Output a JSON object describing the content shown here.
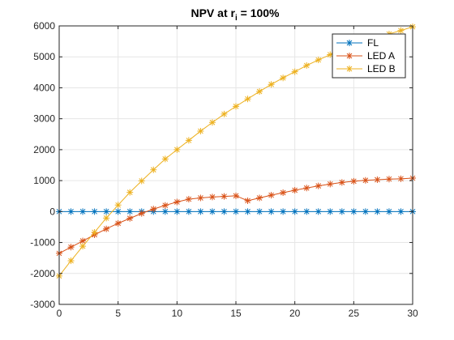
{
  "chart_data": {
    "type": "line",
    "title": "NPV at r",
    "title_sub": "i",
    "title_tail": " = 100%",
    "xlabel": "",
    "ylabel": "",
    "xlim": [
      0,
      30
    ],
    "ylim": [
      -3000,
      6000
    ],
    "xticks": [
      0,
      5,
      10,
      15,
      20,
      25,
      30
    ],
    "yticks": [
      -3000,
      -2000,
      -1000,
      0,
      1000,
      2000,
      3000,
      4000,
      5000,
      6000
    ],
    "grid": true,
    "legend_position": "top-right",
    "marker": "asterisk",
    "x": [
      0,
      1,
      2,
      3,
      4,
      5,
      6,
      7,
      8,
      9,
      10,
      11,
      12,
      13,
      14,
      15,
      16,
      17,
      18,
      19,
      20,
      21,
      22,
      23,
      24,
      25,
      26,
      27,
      28,
      29,
      30
    ],
    "series": [
      {
        "name": "FL",
        "color": "#0072BD",
        "values": [
          0,
          0,
          0,
          0,
          0,
          0,
          0,
          0,
          0,
          0,
          0,
          0,
          0,
          0,
          0,
          0,
          0,
          0,
          0,
          0,
          0,
          0,
          0,
          0,
          0,
          0,
          0,
          0,
          0,
          0,
          0
        ]
      },
      {
        "name": "LED A",
        "color": "#D95319",
        "values": [
          -1350,
          -1150,
          -950,
          -750,
          -560,
          -380,
          -220,
          -60,
          80,
          200,
          310,
          400,
          440,
          470,
          490,
          510,
          350,
          440,
          530,
          610,
          690,
          760,
          830,
          890,
          940,
          980,
          1010,
          1030,
          1050,
          1060,
          1080
        ]
      },
      {
        "name": "LED B",
        "color": "#EDB120",
        "values": [
          -2080,
          -1590,
          -1120,
          -670,
          -210,
          210,
          620,
          990,
          1350,
          1700,
          2000,
          2300,
          2600,
          2880,
          3150,
          3400,
          3640,
          3880,
          4110,
          4320,
          4520,
          4720,
          4900,
          5070,
          5220,
          5370,
          5500,
          5620,
          5740,
          5850,
          5970
        ]
      }
    ]
  }
}
